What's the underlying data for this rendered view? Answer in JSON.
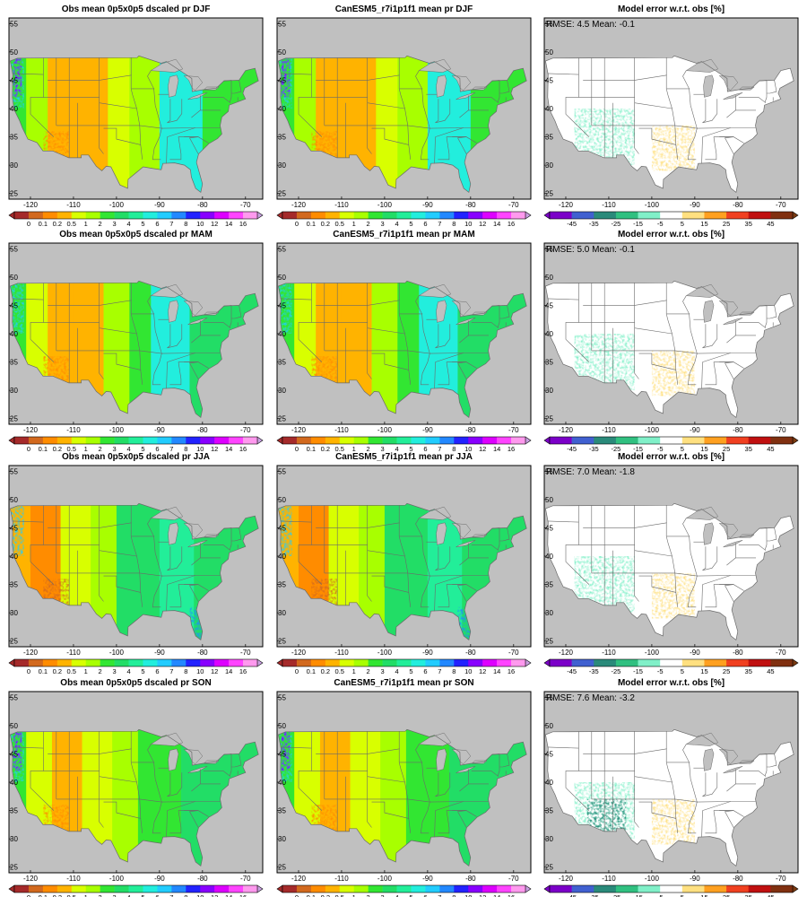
{
  "figure": {
    "rows": [
      "DJF",
      "MAM",
      "JJA",
      "SON"
    ],
    "panels": [
      {
        "title": "Obs mean 0p5x0p5 dscaled pr DJF",
        "type": "precip"
      },
      {
        "title": "CanESM5_r7i1p1f1 mean pr DJF",
        "type": "precip"
      },
      {
        "title": "Model error w.r.t. obs [%]",
        "type": "error",
        "stat": "RMSE: 4.5  Mean: -0.1"
      },
      {
        "title": "Obs mean 0p5x0p5 dscaled pr MAM",
        "type": "precip"
      },
      {
        "title": "CanESM5_r7i1p1f1 mean pr MAM",
        "type": "precip"
      },
      {
        "title": "Model error w.r.t. obs [%]",
        "type": "error",
        "stat": "RMSE: 5.0  Mean: -0.1"
      },
      {
        "title": "Obs mean 0p5x0p5 dscaled pr JJA",
        "type": "precip"
      },
      {
        "title": "CanESM5_r7i1p1f1 mean pr JJA",
        "type": "precip"
      },
      {
        "title": "Model error w.r.t. obs [%]",
        "type": "error",
        "stat": "RMSE: 7.0  Mean: -1.8"
      },
      {
        "title": "Obs mean 0p5x0p5 dscaled pr SON",
        "type": "precip"
      },
      {
        "title": "CanESM5_r7i1p1f1 mean pr SON",
        "type": "precip"
      },
      {
        "title": "Model error w.r.t. obs [%]",
        "type": "error",
        "stat": "RMSE: 7.6  Mean: -3.2"
      }
    ],
    "lon_ticks": [
      "-120",
      "-110",
      "-100",
      "-90",
      "-80",
      "-70"
    ],
    "lon_values": [
      -120,
      -110,
      -100,
      -90,
      -80,
      -70
    ],
    "lat_ticks": [
      "25",
      "30",
      "35",
      "40",
      "45",
      "50",
      "55"
    ],
    "lat_values": [
      25,
      30,
      35,
      40,
      45,
      50,
      55
    ],
    "lon_range": [
      -125,
      -66
    ],
    "lat_range": [
      24,
      56
    ],
    "precip_colorbar": {
      "labels": [
        "0",
        "0.1",
        "0.2",
        "0.5",
        "1",
        "2",
        "3",
        "4",
        "5",
        "6",
        "7",
        "8",
        "10",
        "12",
        "14",
        "16"
      ],
      "colors": [
        "#a52a2a",
        "#d2691e",
        "#ff8c00",
        "#ffb300",
        "#d8ff00",
        "#a8ff00",
        "#32e632",
        "#22dd66",
        "#22ee99",
        "#22eedd",
        "#22ccff",
        "#2288ff",
        "#2222ff",
        "#8800ff",
        "#dd00ff",
        "#ff44ff",
        "#ff99ee"
      ],
      "under_color": "#a52a2a",
      "over_color": "#c8a0e0"
    },
    "error_colorbar": {
      "labels": [
        "-45",
        "-35",
        "-25",
        "-15",
        "-5",
        "5",
        "15",
        "25",
        "35",
        "45"
      ],
      "colors": [
        "#7b00c8",
        "#4060d0",
        "#2a8a7a",
        "#30c080",
        "#80f0c8",
        "#ffffff",
        "#ffe080",
        "#ffa020",
        "#f04020",
        "#c01010",
        "#803010"
      ],
      "under_color": "#7b00c8",
      "over_color": "#7a3a10"
    },
    "colors": {
      "ocean": "#c0c0c0",
      "frame": "#000000",
      "borders": "#6a6a6a"
    }
  }
}
